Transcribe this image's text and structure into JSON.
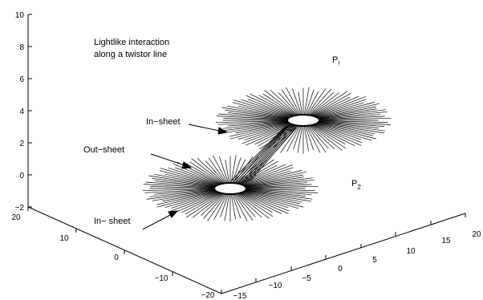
{
  "axes": {
    "z_ticks": [
      "10",
      "8",
      "6",
      "4",
      "2",
      "0",
      "−2"
    ],
    "y_ticks": [
      "20",
      "10",
      "0",
      "−10",
      "−20"
    ],
    "x_ticks": [
      "−15",
      "−10",
      "−5",
      "0",
      "5",
      "10",
      "15",
      "20"
    ]
  },
  "annotations": {
    "title_line1": "Lightlike interaction",
    "title_line2": "along a twistor line",
    "in_sheet_upper": "In−sheet",
    "out_sheet": "Out−sheet",
    "in_sheet_lower": "In− sheet",
    "p1_base": "P",
    "p1_sub": "!",
    "p2_base": "P",
    "p2_sub": "2"
  },
  "colors": {
    "ink": "#000000",
    "background": "#ffffff"
  }
}
